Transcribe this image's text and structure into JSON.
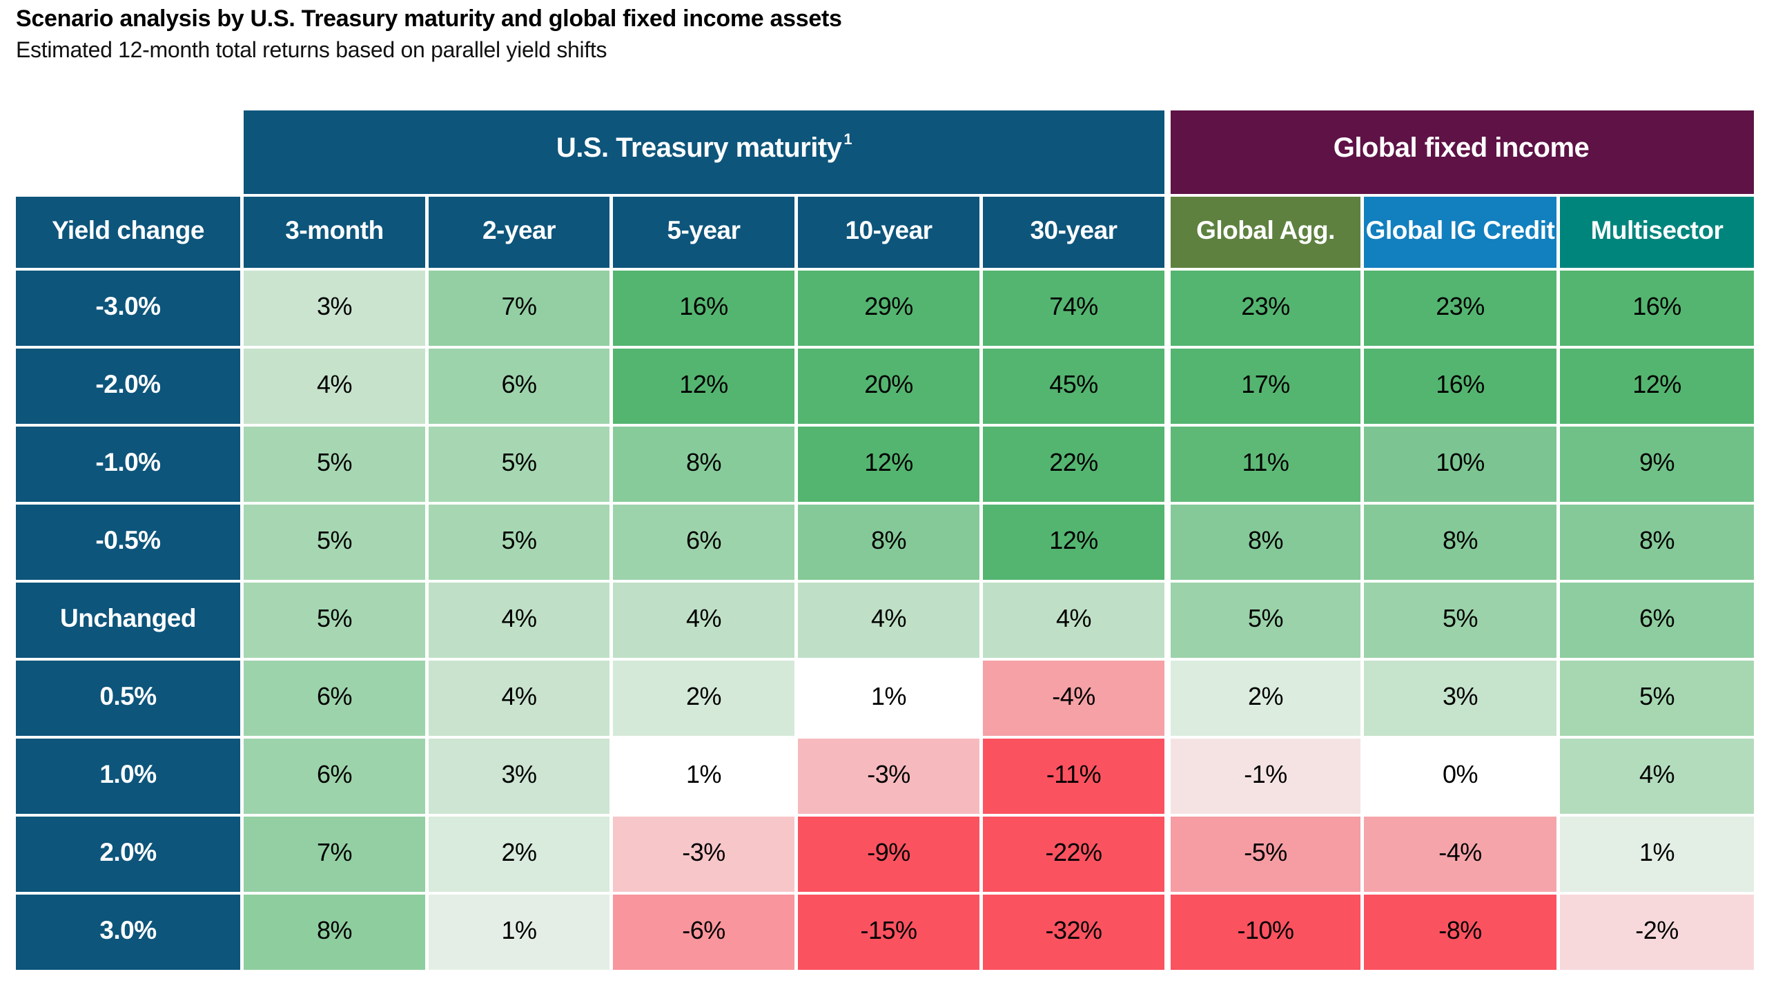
{
  "title": "Scenario analysis by U.S. Treasury maturity and global fixed income assets",
  "subtitle": "Estimated 12-month total returns based on parallel yield shifts",
  "table": {
    "group_headers": [
      {
        "label": "U.S. Treasury maturity",
        "footnote": "1",
        "color": "#0d557b"
      },
      {
        "label": "Global fixed income",
        "footnote": "",
        "color": "#5e1246"
      }
    ],
    "columns": [
      {
        "label": "Yield change",
        "color": "#0d557b"
      },
      {
        "label": "3-month",
        "color": "#0d557b"
      },
      {
        "label": "2-year",
        "color": "#0d557b"
      },
      {
        "label": "5-year",
        "color": "#0d557b"
      },
      {
        "label": "10-year",
        "color": "#0d557b"
      },
      {
        "label": "30-year",
        "color": "#0d557b"
      },
      {
        "label": "Global Agg.",
        "color": "#5e8140"
      },
      {
        "label": "Global IG Credit",
        "color": "#127fbe"
      },
      {
        "label": "Multisector",
        "color": "#00857c"
      }
    ],
    "rows": [
      {
        "label": "-3.0%",
        "cells": [
          {
            "v": "3%",
            "bg": "#cbe4d0"
          },
          {
            "v": "7%",
            "bg": "#93cfa3"
          },
          {
            "v": "16%",
            "bg": "#54b570"
          },
          {
            "v": "29%",
            "bg": "#54b570"
          },
          {
            "v": "74%",
            "bg": "#54b570"
          },
          {
            "v": "23%",
            "bg": "#54b570"
          },
          {
            "v": "23%",
            "bg": "#54b570"
          },
          {
            "v": "16%",
            "bg": "#54b570"
          }
        ]
      },
      {
        "label": "-2.0%",
        "cells": [
          {
            "v": "4%",
            "bg": "#c6e2cb"
          },
          {
            "v": "6%",
            "bg": "#9dd3ab"
          },
          {
            "v": "12%",
            "bg": "#54b570"
          },
          {
            "v": "20%",
            "bg": "#54b570"
          },
          {
            "v": "45%",
            "bg": "#54b570"
          },
          {
            "v": "17%",
            "bg": "#54b570"
          },
          {
            "v": "16%",
            "bg": "#54b570"
          },
          {
            "v": "12%",
            "bg": "#54b570"
          }
        ]
      },
      {
        "label": "-1.0%",
        "cells": [
          {
            "v": "5%",
            "bg": "#a6d7b2"
          },
          {
            "v": "5%",
            "bg": "#a6d7b2"
          },
          {
            "v": "8%",
            "bg": "#88cb9b"
          },
          {
            "v": "12%",
            "bg": "#54b570"
          },
          {
            "v": "22%",
            "bg": "#54b570"
          },
          {
            "v": "11%",
            "bg": "#5eb977"
          },
          {
            "v": "10%",
            "bg": "#7cc592"
          },
          {
            "v": "9%",
            "bg": "#70c187"
          }
        ]
      },
      {
        "label": "-0.5%",
        "cells": [
          {
            "v": "5%",
            "bg": "#a6d7b2"
          },
          {
            "v": "5%",
            "bg": "#a6d7b2"
          },
          {
            "v": "6%",
            "bg": "#9dd3ab"
          },
          {
            "v": "8%",
            "bg": "#85c998"
          },
          {
            "v": "12%",
            "bg": "#54b570"
          },
          {
            "v": "8%",
            "bg": "#85c998"
          },
          {
            "v": "8%",
            "bg": "#85c998"
          },
          {
            "v": "8%",
            "bg": "#85c998"
          }
        ]
      },
      {
        "label": "Unchanged",
        "cells": [
          {
            "v": "5%",
            "bg": "#a6d7b2"
          },
          {
            "v": "4%",
            "bg": "#bfe0c6"
          },
          {
            "v": "4%",
            "bg": "#bfe0c6"
          },
          {
            "v": "4%",
            "bg": "#bfe0c6"
          },
          {
            "v": "4%",
            "bg": "#bfe0c6"
          },
          {
            "v": "5%",
            "bg": "#9bd2a9"
          },
          {
            "v": "5%",
            "bg": "#9bd2a9"
          },
          {
            "v": "6%",
            "bg": "#8ecd9f"
          }
        ]
      },
      {
        "label": "0.5%",
        "cells": [
          {
            "v": "6%",
            "bg": "#9dd3ab"
          },
          {
            "v": "4%",
            "bg": "#c9e3ce"
          },
          {
            "v": "2%",
            "bg": "#d5e9d9"
          },
          {
            "v": "1%",
            "bg": "#ffffff"
          },
          {
            "v": "-4%",
            "bg": "#f5a1a6"
          },
          {
            "v": "2%",
            "bg": "#dcede0"
          },
          {
            "v": "3%",
            "bg": "#c6e3cc"
          },
          {
            "v": "5%",
            "bg": "#a6d7b1"
          }
        ]
      },
      {
        "label": "1.0%",
        "cells": [
          {
            "v": "6%",
            "bg": "#9dd3ab"
          },
          {
            "v": "3%",
            "bg": "#cde5d2"
          },
          {
            "v": "1%",
            "bg": "#ffffff"
          },
          {
            "v": "-3%",
            "bg": "#f6babe"
          },
          {
            "v": "-11%",
            "bg": "#fb5260"
          },
          {
            "v": "-1%",
            "bg": "#f5e3e4"
          },
          {
            "v": "0%",
            "bg": "#ffffff"
          },
          {
            "v": "4%",
            "bg": "#b3dcbd"
          }
        ]
      },
      {
        "label": "2.0%",
        "cells": [
          {
            "v": "7%",
            "bg": "#93cfa3"
          },
          {
            "v": "2%",
            "bg": "#d9ebdc"
          },
          {
            "v": "-3%",
            "bg": "#f7c6c9"
          },
          {
            "v": "-9%",
            "bg": "#fb5260"
          },
          {
            "v": "-22%",
            "bg": "#fb5260"
          },
          {
            "v": "-5%",
            "bg": "#f59da3"
          },
          {
            "v": "-4%",
            "bg": "#f5a5aa"
          },
          {
            "v": "1%",
            "bg": "#e3eee5"
          }
        ]
      },
      {
        "label": "3.0%",
        "cells": [
          {
            "v": "8%",
            "bg": "#8ecd9e"
          },
          {
            "v": "1%",
            "bg": "#e4eee6"
          },
          {
            "v": "-6%",
            "bg": "#f9959c"
          },
          {
            "v": "-15%",
            "bg": "#fb5260"
          },
          {
            "v": "-32%",
            "bg": "#fb5260"
          },
          {
            "v": "-10%",
            "bg": "#fb5260"
          },
          {
            "v": "-8%",
            "bg": "#fb5260"
          },
          {
            "v": "-2%",
            "bg": "#f7d9dc"
          }
        ]
      }
    ]
  },
  "chart_data": {
    "type": "heatmap",
    "title": "Scenario analysis by U.S. Treasury maturity and global fixed income assets",
    "subtitle": "Estimated 12-month total returns based on parallel yield shifts",
    "row_axis_label": "Yield change",
    "column_groups": [
      {
        "name": "U.S. Treasury maturity",
        "footnote": "1",
        "columns": [
          "3-month",
          "2-year",
          "5-year",
          "10-year",
          "30-year"
        ]
      },
      {
        "name": "Global fixed income",
        "footnote": "",
        "columns": [
          "Global Agg.",
          "Global IG Credit",
          "Multisector"
        ]
      }
    ],
    "columns": [
      "3-month",
      "2-year",
      "5-year",
      "10-year",
      "30-year",
      "Global Agg.",
      "Global IG Credit",
      "Multisector"
    ],
    "rows": [
      "-3.0%",
      "-2.0%",
      "-1.0%",
      "-0.5%",
      "Unchanged",
      "0.5%",
      "1.0%",
      "2.0%",
      "3.0%"
    ],
    "values_pct": [
      [
        3,
        7,
        16,
        29,
        74,
        23,
        23,
        16
      ],
      [
        4,
        6,
        12,
        20,
        45,
        17,
        16,
        12
      ],
      [
        5,
        5,
        8,
        12,
        22,
        11,
        10,
        9
      ],
      [
        5,
        5,
        6,
        8,
        12,
        8,
        8,
        8
      ],
      [
        5,
        4,
        4,
        4,
        4,
        5,
        5,
        6
      ],
      [
        6,
        4,
        2,
        1,
        -4,
        2,
        3,
        5
      ],
      [
        6,
        3,
        1,
        -3,
        -11,
        -1,
        0,
        4
      ],
      [
        7,
        2,
        -3,
        -9,
        -22,
        -5,
        -4,
        1
      ],
      [
        8,
        1,
        -6,
        -15,
        -32,
        -10,
        -8,
        -2
      ]
    ],
    "color_scale": {
      "positive_max": "#54b570",
      "zero": "#ffffff",
      "negative_max": "#fb5260"
    },
    "legend_position": "none",
    "grid": "white cell separators"
  }
}
